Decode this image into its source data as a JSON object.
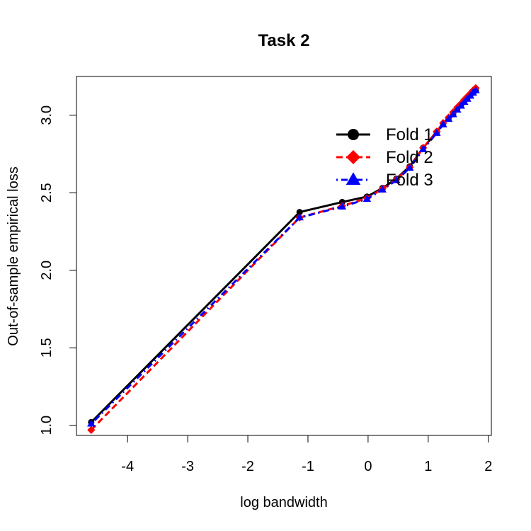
{
  "chart_data": {
    "type": "line",
    "title": "Task 2",
    "xlabel": "log bandwidth",
    "ylabel": "Out-of-sample empirical loss",
    "xlim": [
      -4.85,
      2.05
    ],
    "ylim": [
      0.935,
      3.25
    ],
    "xticks": [
      -4,
      -3,
      -2,
      -1,
      0,
      1,
      2
    ],
    "xtick_labels": [
      "-4",
      "-3",
      "-2",
      "-1",
      "0",
      "1",
      "2"
    ],
    "yticks": [
      1.0,
      1.5,
      2.0,
      2.5,
      3.0
    ],
    "ytick_labels": [
      "1.0",
      "1.5",
      "2.0",
      "2.5",
      "3.0"
    ],
    "legend_position": "top-right",
    "grid": false,
    "series": [
      {
        "name": "Fold 1",
        "color": "#000000",
        "marker": "circle",
        "dash": "solid",
        "x": [
          -4.605,
          -1.139,
          -0.431,
          -0.018,
          0.239,
          0.47,
          0.693,
          0.916,
          1.141,
          1.248,
          1.338,
          1.415,
          1.482,
          1.545,
          1.6,
          1.65,
          1.7,
          1.745,
          1.79
        ],
        "y": [
          1.02,
          2.375,
          2.44,
          2.475,
          2.53,
          2.59,
          2.67,
          2.79,
          2.89,
          2.945,
          2.98,
          3.01,
          3.04,
          3.065,
          3.09,
          3.11,
          3.13,
          3.15,
          3.16
        ]
      },
      {
        "name": "Fold 2",
        "color": "#ff0000",
        "marker": "diamond",
        "dash": "dashed",
        "x": [
          -4.605,
          -1.139,
          -0.431,
          -0.018,
          0.239,
          0.47,
          0.693,
          0.916,
          1.141,
          1.248,
          1.338,
          1.415,
          1.482,
          1.545,
          1.6,
          1.65,
          1.7,
          1.745,
          1.79
        ],
        "y": [
          0.97,
          2.34,
          2.415,
          2.465,
          2.525,
          2.585,
          2.665,
          2.79,
          2.895,
          2.95,
          2.985,
          3.02,
          3.05,
          3.075,
          3.1,
          3.12,
          3.14,
          3.16,
          3.175
        ]
      },
      {
        "name": "Fold 3",
        "color": "#0000ff",
        "marker": "triangle",
        "dash": "dotdash",
        "x": [
          -4.605,
          -1.139,
          -0.431,
          -0.018,
          0.239,
          0.47,
          0.693,
          0.916,
          1.141,
          1.248,
          1.338,
          1.415,
          1.482,
          1.545,
          1.6,
          1.65,
          1.7,
          1.745,
          1.79
        ],
        "y": [
          1.01,
          2.34,
          2.41,
          2.46,
          2.52,
          2.58,
          2.66,
          2.78,
          2.885,
          2.94,
          2.975,
          3.005,
          3.035,
          3.06,
          3.085,
          3.105,
          3.125,
          3.145,
          3.16
        ]
      }
    ]
  }
}
